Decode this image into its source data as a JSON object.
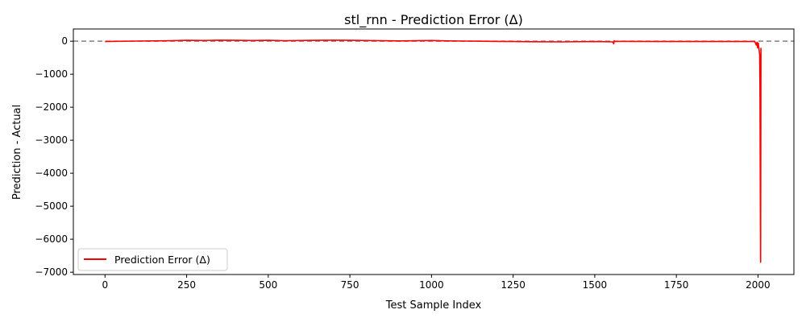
{
  "chart_data": {
    "type": "line",
    "title": "stl_rnn - Prediction Error (Δ)",
    "xlabel": "Test Sample Index",
    "ylabel": "Prediction - Actual",
    "xlim": [
      -97,
      2110
    ],
    "ylim": [
      -7070,
      370
    ],
    "xticks": [
      0,
      250,
      500,
      750,
      1000,
      1250,
      1500,
      1750,
      2000
    ],
    "yticks": [
      0,
      -1000,
      -2000,
      -3000,
      -4000,
      -5000,
      -6000,
      -7000
    ],
    "grid": false,
    "legend": "lower-left",
    "reference_line": {
      "y": 0,
      "style": "dashed",
      "color": "#808080"
    },
    "series": [
      {
        "name": "Prediction Error (Δ)",
        "color": "#ff0000",
        "x": [
          0,
          100,
          200,
          250,
          300,
          350,
          400,
          450,
          500,
          550,
          600,
          650,
          700,
          750,
          800,
          850,
          900,
          950,
          1000,
          1050,
          1100,
          1150,
          1200,
          1250,
          1300,
          1400,
          1500,
          1555,
          1558,
          1560,
          1563,
          1570,
          1600,
          1700,
          1800,
          1900,
          1990,
          1995,
          1997,
          1999,
          2001,
          2003,
          2005,
          2006,
          2007,
          2008,
          2009
        ],
        "y": [
          -10,
          5,
          15,
          25,
          20,
          30,
          25,
          20,
          25,
          15,
          20,
          25,
          30,
          25,
          20,
          15,
          10,
          15,
          20,
          10,
          5,
          0,
          -5,
          -10,
          -15,
          -20,
          -10,
          -20,
          -80,
          10,
          -10,
          -5,
          -5,
          -10,
          -10,
          -10,
          -10,
          -120,
          -30,
          -200,
          -60,
          -250,
          -400,
          -1500,
          -4500,
          -6700,
          -200
        ]
      }
    ]
  }
}
